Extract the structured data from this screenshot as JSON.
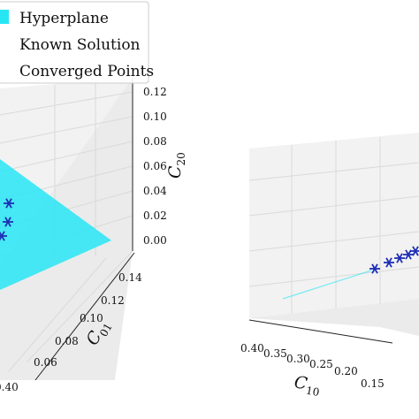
{
  "colors": {
    "hyperplane": "#27e6f4",
    "points": "#1f2fb6",
    "pane": "#f2f2f2",
    "grid": "#dadada"
  },
  "legend": {
    "entries": [
      {
        "label": "Hyperplane",
        "marker": "patch"
      },
      {
        "label": "Known Solution",
        "marker": "none"
      },
      {
        "label": "Converged Points",
        "marker": "none"
      }
    ]
  },
  "chart_data": [
    {
      "type": "scatter",
      "projection": "3d",
      "legend_placement": "top-left",
      "grid": true,
      "axes": {
        "x": {
          "label": "C",
          "label_sub": "10",
          "ticks": [
            "0.40"
          ]
        },
        "y": {
          "label": "C",
          "label_sub": "01",
          "ticks": [
            "0.14",
            "0.12",
            "0.10",
            "0.08",
            "0.06"
          ],
          "range": [
            0.05,
            0.14
          ]
        },
        "z": {
          "label": "C",
          "label_sub": "20",
          "ticks": [
            "0.12",
            "0.10",
            "0.08",
            "0.06",
            "0.04",
            "0.02",
            "0.00"
          ],
          "range": [
            0.0,
            0.12
          ]
        }
      },
      "series": [
        {
          "name": "Hyperplane",
          "kind": "surface"
        },
        {
          "name": "Converged Points",
          "kind": "points",
          "marker": "asterisk",
          "count": 3
        }
      ]
    },
    {
      "type": "scatter",
      "projection": "3d",
      "grid": true,
      "axes": {
        "x": {
          "label": "C",
          "label_sub": "10",
          "ticks": [
            "0.40",
            "0.35",
            "0.30",
            "0.25",
            "0.20",
            "0.15"
          ],
          "range": [
            0.13,
            0.4
          ]
        }
      },
      "series": [
        {
          "name": "Hyperplane",
          "kind": "surface"
        },
        {
          "name": "Converged Points",
          "kind": "points",
          "marker": "asterisk",
          "count": 5
        }
      ]
    }
  ]
}
